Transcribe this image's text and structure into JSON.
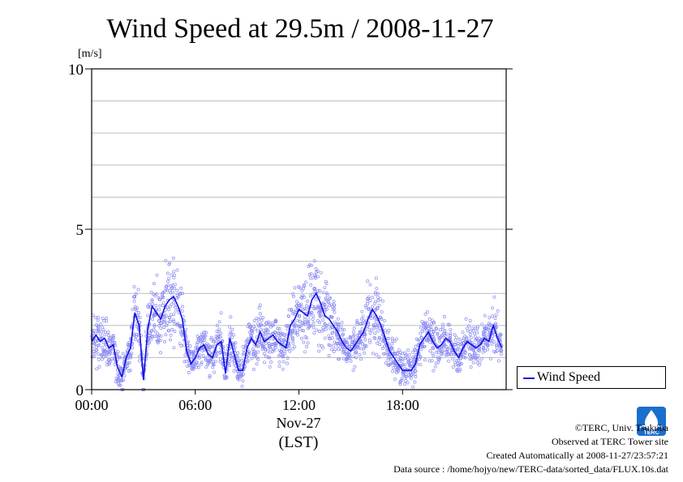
{
  "chart_data": {
    "type": "scatter",
    "title": "Wind Speed at 29.5m / 2008-11-27",
    "ylabel": "[m/s]",
    "xlabel": "(LST)",
    "date_label": "Nov-27",
    "ylim": [
      0,
      10
    ],
    "y_ticks": [
      "0",
      "5",
      "10"
    ],
    "x_ticks": [
      "00:00",
      "06:00",
      "12:00",
      "18:00"
    ],
    "x_tick_hours": [
      0,
      6,
      12,
      18
    ],
    "xlim_hours": [
      0,
      24
    ],
    "grid": "horizontal",
    "legend_position": "right",
    "series": [
      {
        "name": "Wind Speed",
        "color": "#1010e6",
        "x_hours": [
          0.0,
          0.25,
          0.5,
          0.75,
          1.0,
          1.25,
          1.5,
          1.75,
          2.0,
          2.25,
          2.5,
          2.75,
          3.0,
          3.25,
          3.5,
          3.75,
          4.0,
          4.25,
          4.5,
          4.75,
          5.0,
          5.25,
          5.5,
          5.75,
          6.0,
          6.25,
          6.5,
          6.75,
          7.0,
          7.25,
          7.5,
          7.75,
          8.0,
          8.25,
          8.5,
          8.75,
          9.0,
          9.25,
          9.5,
          9.75,
          10.0,
          10.25,
          10.5,
          10.75,
          11.0,
          11.25,
          11.5,
          11.75,
          12.0,
          12.25,
          12.5,
          12.75,
          13.0,
          13.25,
          13.5,
          13.75,
          14.0,
          14.25,
          14.5,
          14.75,
          15.0,
          15.25,
          15.5,
          15.75,
          16.0,
          16.25,
          16.5,
          16.75,
          17.0,
          17.25,
          17.5,
          17.75,
          18.0,
          18.25,
          18.5,
          18.75,
          19.0,
          19.25,
          19.5,
          19.75,
          20.0,
          20.25,
          20.5,
          20.75,
          21.0,
          21.25,
          21.5,
          21.75,
          22.0,
          22.25,
          22.5,
          22.75,
          23.0,
          23.25,
          23.5,
          23.75
        ],
        "y": [
          1.5,
          1.7,
          1.5,
          1.6,
          1.3,
          1.4,
          0.7,
          0.4,
          1.0,
          1.3,
          2.4,
          2.0,
          0.3,
          1.9,
          2.6,
          2.4,
          2.2,
          2.6,
          2.8,
          2.9,
          2.6,
          2.2,
          1.2,
          0.8,
          1.0,
          1.3,
          1.4,
          1.1,
          1.0,
          1.4,
          1.5,
          0.5,
          1.6,
          1.1,
          0.6,
          0.6,
          1.3,
          1.6,
          1.4,
          1.8,
          1.5,
          1.6,
          1.7,
          1.5,
          1.4,
          1.3,
          2.0,
          2.2,
          2.5,
          2.4,
          2.3,
          2.8,
          3.0,
          2.7,
          2.3,
          2.2,
          2.0,
          1.8,
          1.5,
          1.3,
          1.2,
          1.4,
          1.6,
          1.8,
          2.2,
          2.5,
          2.3,
          2.0,
          1.6,
          1.2,
          1.0,
          0.8,
          0.6,
          0.6,
          0.6,
          0.8,
          1.4,
          1.6,
          1.8,
          1.5,
          1.3,
          1.4,
          1.6,
          1.5,
          1.2,
          1.0,
          1.3,
          1.5,
          1.4,
          1.3,
          1.4,
          1.6,
          1.5,
          2.0,
          1.6,
          1.3
        ],
        "scatter_spread": 0.45
      }
    ]
  },
  "legend": {
    "label": "Wind Speed"
  },
  "footer": {
    "copyright": "©TERC, Univ. Tsukuba",
    "observed": "Observed at TERC Tower site",
    "created": "Created Automatically at 2008-11-27/23:57:21",
    "source": "Data source : /home/hojyo/new/TERC-data/sorted_data/FLUX.10s.dat"
  },
  "logo": {
    "text": "TERC",
    "icon": "terc-logo-icon",
    "color": "#1a6fcc"
  }
}
